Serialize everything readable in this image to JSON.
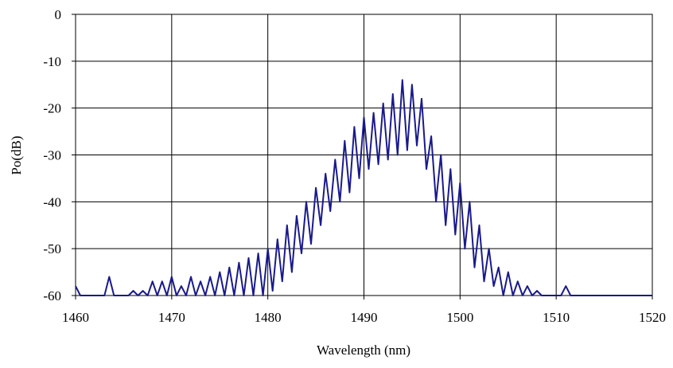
{
  "chart_data": {
    "type": "line",
    "title": "",
    "xlabel": "Wavelength (nm)",
    "ylabel": "Po(dB)",
    "xlim": [
      1460,
      1520
    ],
    "ylim": [
      -60,
      0
    ],
    "x_ticks": [
      1460,
      1470,
      1480,
      1490,
      1500,
      1510,
      1520
    ],
    "y_ticks": [
      0,
      -10,
      -20,
      -30,
      -40,
      -50,
      -60
    ],
    "x_tick_labels": [
      "1460",
      "1470",
      "1480",
      "1490",
      "1500",
      "1510",
      "1520"
    ],
    "y_tick_labels": [
      "0",
      "-10",
      "-20",
      "-30",
      "-40",
      "-50",
      "-60"
    ],
    "grid": true,
    "legend": "none",
    "series": [
      {
        "color": "#1a1a8c",
        "x": [
          1460.0,
          1460.5,
          1461.0,
          1461.5,
          1462.0,
          1462.5,
          1463.0,
          1463.5,
          1464.0,
          1464.5,
          1465.0,
          1465.5,
          1466.0,
          1466.5,
          1467.0,
          1467.5,
          1468.0,
          1468.5,
          1469.0,
          1469.5,
          1470.0,
          1470.5,
          1471.0,
          1471.5,
          1472.0,
          1472.5,
          1473.0,
          1473.5,
          1474.0,
          1474.5,
          1475.0,
          1475.5,
          1476.0,
          1476.5,
          1477.0,
          1477.5,
          1478.0,
          1478.5,
          1479.0,
          1479.5,
          1480.0,
          1480.5,
          1481.0,
          1481.5,
          1482.0,
          1482.5,
          1483.0,
          1483.5,
          1484.0,
          1484.5,
          1485.0,
          1485.5,
          1486.0,
          1486.5,
          1487.0,
          1487.5,
          1488.0,
          1488.5,
          1489.0,
          1489.5,
          1490.0,
          1490.5,
          1491.0,
          1491.5,
          1492.0,
          1492.5,
          1493.0,
          1493.5,
          1494.0,
          1494.5,
          1495.0,
          1495.5,
          1496.0,
          1496.5,
          1497.0,
          1497.5,
          1498.0,
          1498.5,
          1499.0,
          1499.5,
          1500.0,
          1500.5,
          1501.0,
          1501.5,
          1502.0,
          1502.5,
          1503.0,
          1503.5,
          1504.0,
          1504.5,
          1505.0,
          1505.5,
          1506.0,
          1506.5,
          1507.0,
          1507.5,
          1508.0,
          1508.5,
          1509.0,
          1509.5,
          1510.0,
          1510.5,
          1511.0,
          1511.5,
          1512.0,
          1512.5,
          1513.0,
          1513.5,
          1514.0,
          1514.5,
          1515.0,
          1515.5,
          1516.0,
          1516.5,
          1517.0,
          1517.5,
          1518.0,
          1518.5,
          1519.0,
          1519.5,
          1520.0
        ],
        "y": [
          -58,
          -60,
          -60,
          -60,
          -60,
          -60,
          -60,
          -56,
          -60,
          -60,
          -60,
          -60,
          -59,
          -60,
          -59,
          -60,
          -57,
          -60,
          -57,
          -60,
          -56,
          -60,
          -58,
          -60,
          -56,
          -60,
          -57,
          -60,
          -56,
          -60,
          -55,
          -60,
          -54,
          -60,
          -53,
          -60,
          -52,
          -60,
          -51,
          -60,
          -50,
          -59,
          -48,
          -57,
          -45,
          -55,
          -43,
          -51,
          -40,
          -49,
          -37,
          -45,
          -34,
          -42,
          -31,
          -40,
          -27,
          -38,
          -24,
          -35,
          -22,
          -33,
          -21,
          -32,
          -19,
          -31,
          -17,
          -30,
          -14,
          -29,
          -15,
          -28,
          -18,
          -33,
          -26,
          -40,
          -30,
          -45,
          -33,
          -47,
          -36,
          -50,
          -40,
          -54,
          -45,
          -57,
          -50,
          -58,
          -54,
          -60,
          -55,
          -60,
          -57,
          -60,
          -58,
          -60,
          -59,
          -60,
          -60,
          -60,
          -60,
          -60,
          -58,
          -60,
          -60,
          -60,
          -60,
          -60,
          -60,
          -60,
          -60,
          -60,
          -60,
          -60,
          -60,
          -60,
          -60,
          -60,
          -60,
          -60,
          -60
        ]
      }
    ]
  }
}
